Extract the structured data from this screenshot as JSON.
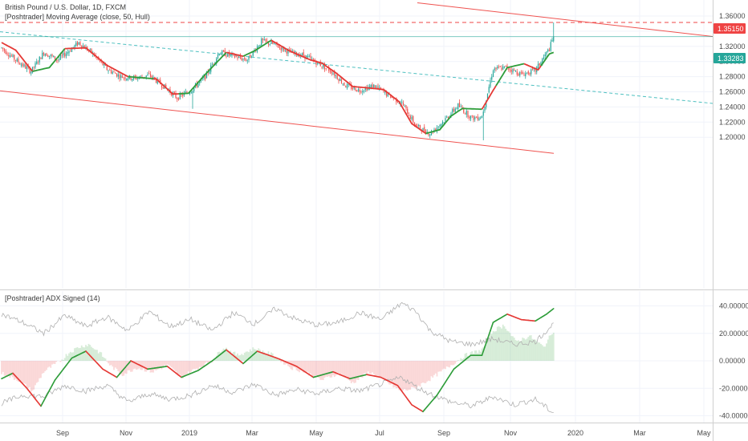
{
  "colors": {
    "up": "#26a69a",
    "down": "#ef5350",
    "hull_up": "#2e9d3a",
    "hull_down": "#e53935",
    "channel": "#ef5350",
    "diag": "#4ec0c0",
    "resistance": "#ef4444",
    "price_line": "#26a69a",
    "adx_fill_pos": "#4caf50",
    "adx_fill_neg": "#ef5350",
    "di_line": "#b0b0b0"
  },
  "main_legend": {
    "title": "British Pound / U.S. Dollar, 1D, FXCM",
    "indicator": "[Poshtrader] Moving Average (close, 50, Hull)"
  },
  "sub_legend": "[Poshtrader] ADX Signed (14)",
  "badges": {
    "resistance": "1.35150",
    "last_price": "1.33283"
  },
  "chart_data": [
    {
      "type": "candlestick",
      "title": "British Pound / U.S. Dollar, 1D, FXCM",
      "ylim": [
        1.18,
        1.37
      ],
      "y_ticks": [
        "1.36000",
        "1.34000",
        "1.32000",
        "1.30000",
        "1.28000",
        "1.26000",
        "1.24000",
        "1.22000",
        "1.20000"
      ],
      "y_tick_values": [
        1.36,
        1.34,
        1.32,
        1.3,
        1.28,
        1.26,
        1.24,
        1.22,
        1.2
      ],
      "x_labels": [
        "Sep",
        "Nov",
        "2019",
        "Mar",
        "May",
        "Jul",
        "Sep",
        "Nov",
        "2020",
        "Mar",
        "May"
      ],
      "price_path": [
        {
          "t": 0,
          "v": 1.318
        },
        {
          "t": 10,
          "v": 1.302
        },
        {
          "t": 21,
          "v": 1.287
        },
        {
          "t": 30,
          "v": 1.312
        },
        {
          "t": 40,
          "v": 1.302
        },
        {
          "t": 55,
          "v": 1.325
        },
        {
          "t": 65,
          "v": 1.31
        },
        {
          "t": 75,
          "v": 1.29
        },
        {
          "t": 85,
          "v": 1.28
        },
        {
          "t": 95,
          "v": 1.278
        },
        {
          "t": 105,
          "v": 1.282
        },
        {
          "t": 115,
          "v": 1.268
        },
        {
          "t": 125,
          "v": 1.252
        },
        {
          "t": 135,
          "v": 1.262
        },
        {
          "t": 145,
          "v": 1.28
        },
        {
          "t": 155,
          "v": 1.312
        },
        {
          "t": 165,
          "v": 1.307
        },
        {
          "t": 175,
          "v": 1.302
        },
        {
          "t": 185,
          "v": 1.327
        },
        {
          "t": 195,
          "v": 1.322
        },
        {
          "t": 205,
          "v": 1.312
        },
        {
          "t": 215,
          "v": 1.308
        },
        {
          "t": 225,
          "v": 1.298
        },
        {
          "t": 235,
          "v": 1.287
        },
        {
          "t": 245,
          "v": 1.268
        },
        {
          "t": 255,
          "v": 1.262
        },
        {
          "t": 265,
          "v": 1.268
        },
        {
          "t": 275,
          "v": 1.256
        },
        {
          "t": 285,
          "v": 1.245
        },
        {
          "t": 295,
          "v": 1.215
        },
        {
          "t": 305,
          "v": 1.205
        },
        {
          "t": 315,
          "v": 1.222
        },
        {
          "t": 325,
          "v": 1.242
        },
        {
          "t": 335,
          "v": 1.225
        },
        {
          "t": 342,
          "v": 1.228
        },
        {
          "t": 350,
          "v": 1.29
        },
        {
          "t": 360,
          "v": 1.292
        },
        {
          "t": 370,
          "v": 1.283
        },
        {
          "t": 380,
          "v": 1.288
        },
        {
          "t": 390,
          "v": 1.317
        },
        {
          "t": 393,
          "v": 1.333
        }
      ],
      "hull_ma_path": [
        {
          "t": 0,
          "v": 1.325
        },
        {
          "t": 10,
          "v": 1.315
        },
        {
          "t": 22,
          "v": 1.287
        },
        {
          "t": 34,
          "v": 1.292
        },
        {
          "t": 45,
          "v": 1.317
        },
        {
          "t": 60,
          "v": 1.318
        },
        {
          "t": 75,
          "v": 1.295
        },
        {
          "t": 90,
          "v": 1.28
        },
        {
          "t": 110,
          "v": 1.277
        },
        {
          "t": 122,
          "v": 1.257
        },
        {
          "t": 133,
          "v": 1.258
        },
        {
          "t": 145,
          "v": 1.283
        },
        {
          "t": 160,
          "v": 1.312
        },
        {
          "t": 172,
          "v": 1.307
        },
        {
          "t": 180,
          "v": 1.314
        },
        {
          "t": 192,
          "v": 1.328
        },
        {
          "t": 205,
          "v": 1.314
        },
        {
          "t": 220,
          "v": 1.302
        },
        {
          "t": 228,
          "v": 1.298
        },
        {
          "t": 238,
          "v": 1.285
        },
        {
          "t": 250,
          "v": 1.267
        },
        {
          "t": 262,
          "v": 1.265
        },
        {
          "t": 272,
          "v": 1.263
        },
        {
          "t": 283,
          "v": 1.247
        },
        {
          "t": 292,
          "v": 1.218
        },
        {
          "t": 302,
          "v": 1.205
        },
        {
          "t": 312,
          "v": 1.21
        },
        {
          "t": 320,
          "v": 1.228
        },
        {
          "t": 328,
          "v": 1.238
        },
        {
          "t": 342,
          "v": 1.237
        },
        {
          "t": 350,
          "v": 1.262
        },
        {
          "t": 360,
          "v": 1.292
        },
        {
          "t": 372,
          "v": 1.297
        },
        {
          "t": 382,
          "v": 1.289
        },
        {
          "t": 390,
          "v": 1.31
        },
        {
          "t": 393,
          "v": 1.312
        }
      ],
      "hull_color_segments": [
        {
          "from": 0,
          "to": 22,
          "dir": "down"
        },
        {
          "from": 22,
          "to": 45,
          "dir": "up"
        },
        {
          "from": 45,
          "to": 90,
          "dir": "down"
        },
        {
          "from": 90,
          "to": 108,
          "dir": "up"
        },
        {
          "from": 108,
          "to": 126,
          "dir": "down"
        },
        {
          "from": 126,
          "to": 160,
          "dir": "up"
        },
        {
          "from": 160,
          "to": 172,
          "dir": "down"
        },
        {
          "from": 172,
          "to": 192,
          "dir": "up"
        },
        {
          "from": 192,
          "to": 302,
          "dir": "down"
        },
        {
          "from": 302,
          "to": 342,
          "dir": "up"
        },
        {
          "from": 342,
          "to": 352,
          "dir": "down"
        },
        {
          "from": 352,
          "to": 372,
          "dir": "up"
        },
        {
          "from": 372,
          "to": 384,
          "dir": "down"
        },
        {
          "from": 384,
          "to": 393,
          "dir": "up"
        }
      ],
      "spike_high": 1.3515,
      "spike_low": 1.2375,
      "resistance_level": 1.3515,
      "last_price": 1.33283
    },
    {
      "type": "line",
      "title": "[Poshtrader] ADX Signed (14)",
      "ylim": [
        -45,
        45
      ],
      "y_ticks": [
        "40.00000",
        "20.00000",
        "0.00000",
        "-20.00000",
        "-40.00000"
      ],
      "y_tick_values": [
        40,
        20,
        0,
        -20,
        -40
      ],
      "adx_signed_path": [
        {
          "t": 0,
          "v": -13
        },
        {
          "t": 8,
          "v": -9
        },
        {
          "t": 18,
          "v": -20
        },
        {
          "t": 28,
          "v": -33
        },
        {
          "t": 38,
          "v": -14
        },
        {
          "t": 50,
          "v": 2
        },
        {
          "t": 60,
          "v": 7
        },
        {
          "t": 72,
          "v": -6
        },
        {
          "t": 82,
          "v": -12
        },
        {
          "t": 92,
          "v": 0
        },
        {
          "t": 104,
          "v": -6
        },
        {
          "t": 118,
          "v": -4
        },
        {
          "t": 128,
          "v": -12
        },
        {
          "t": 140,
          "v": -7
        },
        {
          "t": 150,
          "v": 0
        },
        {
          "t": 160,
          "v": 8
        },
        {
          "t": 172,
          "v": -2
        },
        {
          "t": 182,
          "v": 7
        },
        {
          "t": 196,
          "v": 2
        },
        {
          "t": 210,
          "v": -4
        },
        {
          "t": 222,
          "v": -12
        },
        {
          "t": 236,
          "v": -8
        },
        {
          "t": 248,
          "v": -13
        },
        {
          "t": 260,
          "v": -10
        },
        {
          "t": 270,
          "v": -12
        },
        {
          "t": 282,
          "v": -18
        },
        {
          "t": 292,
          "v": -32
        },
        {
          "t": 300,
          "v": -37
        },
        {
          "t": 310,
          "v": -25
        },
        {
          "t": 322,
          "v": -6
        },
        {
          "t": 334,
          "v": 4
        },
        {
          "t": 342,
          "v": 4
        },
        {
          "t": 350,
          "v": 28
        },
        {
          "t": 360,
          "v": 34
        },
        {
          "t": 370,
          "v": 30
        },
        {
          "t": 380,
          "v": 29
        },
        {
          "t": 388,
          "v": 34
        },
        {
          "t": 393,
          "v": 38
        }
      ],
      "di_plus_path": [
        {
          "t": 0,
          "v": 34
        },
        {
          "t": 15,
          "v": 28
        },
        {
          "t": 30,
          "v": 20
        },
        {
          "t": 45,
          "v": 33
        },
        {
          "t": 60,
          "v": 25
        },
        {
          "t": 75,
          "v": 32
        },
        {
          "t": 90,
          "v": 22
        },
        {
          "t": 105,
          "v": 36
        },
        {
          "t": 120,
          "v": 25
        },
        {
          "t": 135,
          "v": 30
        },
        {
          "t": 150,
          "v": 22
        },
        {
          "t": 165,
          "v": 35
        },
        {
          "t": 180,
          "v": 27
        },
        {
          "t": 195,
          "v": 38
        },
        {
          "t": 210,
          "v": 30
        },
        {
          "t": 225,
          "v": 26
        },
        {
          "t": 240,
          "v": 28
        },
        {
          "t": 255,
          "v": 35
        },
        {
          "t": 270,
          "v": 30
        },
        {
          "t": 285,
          "v": 42
        },
        {
          "t": 295,
          "v": 36
        },
        {
          "t": 305,
          "v": 22
        },
        {
          "t": 320,
          "v": 14
        },
        {
          "t": 335,
          "v": 12
        },
        {
          "t": 350,
          "v": 16
        },
        {
          "t": 365,
          "v": 12
        },
        {
          "t": 380,
          "v": 14
        },
        {
          "t": 393,
          "v": 27
        }
      ],
      "di_minus_path": [
        {
          "t": 0,
          "v": -31
        },
        {
          "t": 15,
          "v": -25
        },
        {
          "t": 30,
          "v": -26
        },
        {
          "t": 45,
          "v": -18
        },
        {
          "t": 60,
          "v": -22
        },
        {
          "t": 75,
          "v": -18
        },
        {
          "t": 90,
          "v": -30
        },
        {
          "t": 105,
          "v": -24
        },
        {
          "t": 120,
          "v": -28
        },
        {
          "t": 135,
          "v": -25
        },
        {
          "t": 150,
          "v": -18
        },
        {
          "t": 165,
          "v": -23
        },
        {
          "t": 180,
          "v": -17
        },
        {
          "t": 195,
          "v": -25
        },
        {
          "t": 210,
          "v": -21
        },
        {
          "t": 225,
          "v": -24
        },
        {
          "t": 240,
          "v": -20
        },
        {
          "t": 255,
          "v": -22
        },
        {
          "t": 270,
          "v": -17
        },
        {
          "t": 285,
          "v": -12
        },
        {
          "t": 295,
          "v": -19
        },
        {
          "t": 305,
          "v": -24
        },
        {
          "t": 320,
          "v": -30
        },
        {
          "t": 335,
          "v": -33
        },
        {
          "t": 350,
          "v": -26
        },
        {
          "t": 365,
          "v": -32
        },
        {
          "t": 380,
          "v": -28
        },
        {
          "t": 393,
          "v": -38
        }
      ],
      "histogram_bands": [
        {
          "t": 0,
          "v": -9
        },
        {
          "t": 12,
          "v": -14
        },
        {
          "t": 22,
          "v": -22
        },
        {
          "t": 30,
          "v": -8
        },
        {
          "t": 42,
          "v": 0
        },
        {
          "t": 48,
          "v": 6
        },
        {
          "t": 55,
          "v": 10
        },
        {
          "t": 62,
          "v": 12
        },
        {
          "t": 70,
          "v": 6
        },
        {
          "t": 78,
          "v": -4
        },
        {
          "t": 86,
          "v": -10
        },
        {
          "t": 96,
          "v": -5
        },
        {
          "t": 108,
          "v": -8
        },
        {
          "t": 118,
          "v": -3
        },
        {
          "t": 128,
          "v": -12
        },
        {
          "t": 138,
          "v": -6
        },
        {
          "t": 150,
          "v": 0
        },
        {
          "t": 158,
          "v": 10
        },
        {
          "t": 168,
          "v": 4
        },
        {
          "t": 180,
          "v": 9
        },
        {
          "t": 194,
          "v": 4
        },
        {
          "t": 206,
          "v": -5
        },
        {
          "t": 216,
          "v": -8
        },
        {
          "t": 228,
          "v": -14
        },
        {
          "t": 240,
          "v": -9
        },
        {
          "t": 250,
          "v": -16
        },
        {
          "t": 262,
          "v": -8
        },
        {
          "t": 272,
          "v": -14
        },
        {
          "t": 284,
          "v": -22
        },
        {
          "t": 294,
          "v": -20
        },
        {
          "t": 304,
          "v": -14
        },
        {
          "t": 316,
          "v": -6
        },
        {
          "t": 330,
          "v": 4
        },
        {
          "t": 342,
          "v": 8
        },
        {
          "t": 350,
          "v": 22
        },
        {
          "t": 358,
          "v": 26
        },
        {
          "t": 366,
          "v": 14
        },
        {
          "t": 376,
          "v": 18
        },
        {
          "t": 386,
          "v": 10
        },
        {
          "t": 393,
          "v": 22
        }
      ]
    }
  ]
}
